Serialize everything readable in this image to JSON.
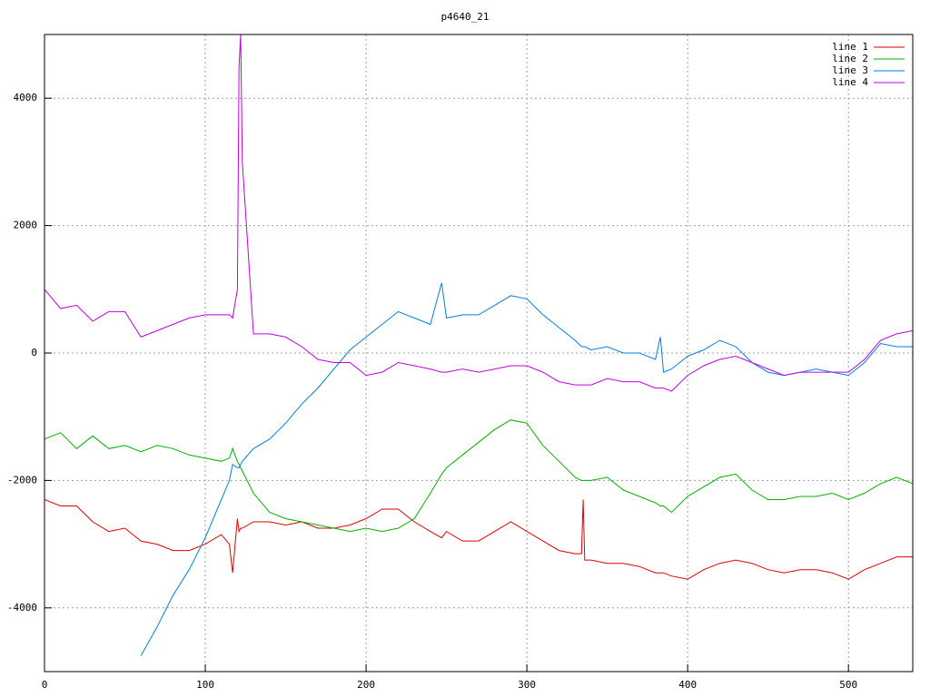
{
  "chart_data": {
    "type": "line",
    "title": "p4640_21",
    "x": [
      0,
      10,
      20,
      30,
      40,
      50,
      60,
      70,
      80,
      90,
      100,
      110,
      115,
      117,
      120,
      121,
      122,
      123,
      130,
      140,
      150,
      160,
      170,
      180,
      190,
      200,
      210,
      220,
      230,
      240,
      247,
      250,
      260,
      270,
      280,
      290,
      300,
      310,
      320,
      330,
      334,
      335,
      336,
      340,
      350,
      360,
      370,
      380,
      383,
      385,
      390,
      400,
      410,
      420,
      430,
      440,
      450,
      460,
      470,
      480,
      490,
      500,
      510,
      520,
      530,
      540
    ],
    "series": [
      {
        "name": "line 1",
        "color": "#e00000",
        "values": [
          -2300,
          -2400,
          -2400,
          -2650,
          -2800,
          -2750,
          -2950,
          -3000,
          -3100,
          -3100,
          -3000,
          -2850,
          -3000,
          -3450,
          -2600,
          -2800,
          -2750,
          -2750,
          -2650,
          -2650,
          -2700,
          -2650,
          -2750,
          -2750,
          -2700,
          -2600,
          -2450,
          -2450,
          -2650,
          -2800,
          -2900,
          -2800,
          -2950,
          -2950,
          -2800,
          -2650,
          -2800,
          -2950,
          -3100,
          -3150,
          -3150,
          -2300,
          -3250,
          -3250,
          -3300,
          -3300,
          -3350,
          -3450,
          -3450,
          -3450,
          -3500,
          -3550,
          -3400,
          -3300,
          -3250,
          -3300,
          -3400,
          -3450,
          -3400,
          -3400,
          -3450,
          -3550,
          -3400,
          -3300,
          -3200,
          -3200
        ]
      },
      {
        "name": "line 2",
        "color": "#00b000",
        "values": [
          -1350,
          -1250,
          -1500,
          -1300,
          -1500,
          -1450,
          -1550,
          -1450,
          -1500,
          -1600,
          -1650,
          -1700,
          -1650,
          -1500,
          -1700,
          -1750,
          -1800,
          -1850,
          -2200,
          -2500,
          -2600,
          -2650,
          -2700,
          -2750,
          -2800,
          -2750,
          -2800,
          -2750,
          -2600,
          -2200,
          -1900,
          -1800,
          -1600,
          -1400,
          -1200,
          -1050,
          -1100,
          -1450,
          -1700,
          -1950,
          -2000,
          -2000,
          -2000,
          -2000,
          -1950,
          -2150,
          -2250,
          -2350,
          -2400,
          -2400,
          -2500,
          -2250,
          -2100,
          -1950,
          -1900,
          -2150,
          -2300,
          -2300,
          -2250,
          -2250,
          -2200,
          -2300,
          -2200,
          -2050,
          -1950,
          -2050
        ]
      },
      {
        "name": "line 3",
        "color": "#0080e0",
        "values": [
          null,
          null,
          null,
          null,
          null,
          null,
          -4750,
          -4300,
          -3800,
          -3400,
          -2900,
          -2300,
          -2000,
          -1750,
          -1800,
          -1800,
          -1750,
          -1700,
          -1500,
          -1350,
          -1100,
          -800,
          -550,
          -250,
          50,
          250,
          450,
          650,
          550,
          450,
          1100,
          550,
          600,
          600,
          750,
          900,
          850,
          600,
          400,
          200,
          100,
          100,
          100,
          50,
          100,
          0,
          0,
          -100,
          250,
          -300,
          -250,
          -50,
          50,
          200,
          100,
          -150,
          -300,
          -350,
          -300,
          -250,
          -300,
          -350,
          -150,
          150,
          100,
          100
        ]
      },
      {
        "name": "line 4",
        "color": "#c000e0",
        "values": [
          1000,
          700,
          750,
          500,
          650,
          650,
          250,
          350,
          450,
          550,
          600,
          600,
          600,
          550,
          1000,
          4500,
          5000,
          3000,
          300,
          300,
          250,
          100,
          -100,
          -150,
          -150,
          -350,
          -300,
          -150,
          -200,
          -250,
          -300,
          -300,
          -250,
          -300,
          -250,
          -200,
          -200,
          -300,
          -450,
          -500,
          -500,
          -500,
          -500,
          -500,
          -400,
          -450,
          -450,
          -550,
          -550,
          -550,
          -600,
          -350,
          -200,
          -100,
          -50,
          -150,
          -250,
          -350,
          -300,
          -300,
          -300,
          -300,
          -100,
          200,
          300,
          350
        ]
      }
    ],
    "xlim": [
      0,
      540
    ],
    "ylim": [
      -5000,
      5000
    ],
    "xticks": [
      0,
      100,
      200,
      300,
      400,
      500
    ],
    "yticks": [
      {
        "value": -4000,
        "label": "-4000"
      },
      {
        "value": -2000,
        "label": "-2000"
      },
      0,
      2000,
      4000
    ],
    "grid": true,
    "legend": "top-right"
  }
}
